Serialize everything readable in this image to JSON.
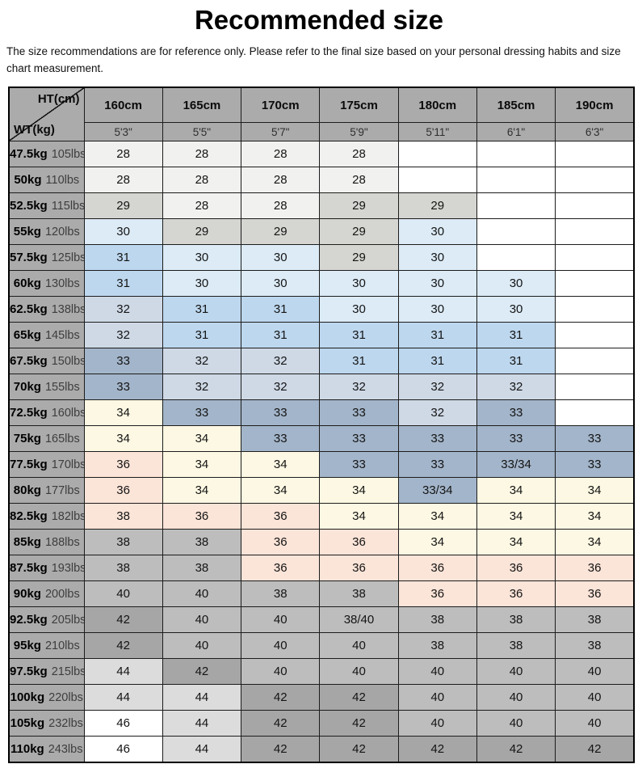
{
  "title": "Recommended size",
  "disclaimer": "The size recommendations are for reference only. Please refer to the final size based on your personal dressing habits and size chart measurement.",
  "table": {
    "corner_top": "HT(cm)",
    "corner_bottom": "WT(kg)",
    "heights_cm": [
      "160cm",
      "165cm",
      "170cm",
      "175cm",
      "180cm",
      "185cm",
      "190cm"
    ],
    "heights_ft": [
      "5'3\"",
      "5'5\"",
      "5'7\"",
      "5'9\"",
      "5'11\"",
      "6'1\"",
      "6'3\""
    ],
    "colors": {
      "white": "#ffffff",
      "near_white": "#f1f1ef",
      "gray_light": "#d5d5d1",
      "blue_pale": "#dcebf6",
      "blue_mid": "#bdd7ee",
      "bluegray_pale": "#cfd9e6",
      "bluegray_deep": "#a3b5ca",
      "cream": "#fdf8e3",
      "pink": "#fbe4d8",
      "gray_mid": "#bdbdbd",
      "gray_dark": "#a6a6a6",
      "gray_pale": "#dcdcdc",
      "header_gray": "#ababab"
    },
    "rows": [
      {
        "kg": "47.5kg",
        "lbs": "105lbs",
        "cells": [
          {
            "v": "28",
            "c": "near_white"
          },
          {
            "v": "28",
            "c": "near_white"
          },
          {
            "v": "28",
            "c": "near_white"
          },
          {
            "v": "28",
            "c": "near_white"
          },
          {
            "v": "",
            "c": "white"
          },
          {
            "v": "",
            "c": "white"
          },
          {
            "v": "",
            "c": "white"
          }
        ]
      },
      {
        "kg": "50kg",
        "lbs": "110lbs",
        "cells": [
          {
            "v": "28",
            "c": "near_white"
          },
          {
            "v": "28",
            "c": "near_white"
          },
          {
            "v": "28",
            "c": "near_white"
          },
          {
            "v": "28",
            "c": "near_white"
          },
          {
            "v": "",
            "c": "white"
          },
          {
            "v": "",
            "c": "white"
          },
          {
            "v": "",
            "c": "white"
          }
        ]
      },
      {
        "kg": "52.5kg",
        "lbs": "115lbs",
        "cells": [
          {
            "v": "29",
            "c": "gray_light"
          },
          {
            "v": "28",
            "c": "near_white"
          },
          {
            "v": "28",
            "c": "near_white"
          },
          {
            "v": "29",
            "c": "gray_light"
          },
          {
            "v": "29",
            "c": "gray_light"
          },
          {
            "v": "",
            "c": "white"
          },
          {
            "v": "",
            "c": "white"
          }
        ]
      },
      {
        "kg": "55kg",
        "lbs": "120lbs",
        "cells": [
          {
            "v": "30",
            "c": "blue_pale"
          },
          {
            "v": "29",
            "c": "gray_light"
          },
          {
            "v": "29",
            "c": "gray_light"
          },
          {
            "v": "29",
            "c": "gray_light"
          },
          {
            "v": "30",
            "c": "blue_pale"
          },
          {
            "v": "",
            "c": "white"
          },
          {
            "v": "",
            "c": "white"
          }
        ]
      },
      {
        "kg": "57.5kg",
        "lbs": "125lbs",
        "cells": [
          {
            "v": "31",
            "c": "blue_mid"
          },
          {
            "v": "30",
            "c": "blue_pale"
          },
          {
            "v": "30",
            "c": "blue_pale"
          },
          {
            "v": "29",
            "c": "gray_light"
          },
          {
            "v": "30",
            "c": "blue_pale"
          },
          {
            "v": "",
            "c": "white"
          },
          {
            "v": "",
            "c": "white"
          }
        ]
      },
      {
        "kg": "60kg",
        "lbs": "130lbs",
        "cells": [
          {
            "v": "31",
            "c": "blue_mid"
          },
          {
            "v": "30",
            "c": "blue_pale"
          },
          {
            "v": "30",
            "c": "blue_pale"
          },
          {
            "v": "30",
            "c": "blue_pale"
          },
          {
            "v": "30",
            "c": "blue_pale"
          },
          {
            "v": "30",
            "c": "blue_pale"
          },
          {
            "v": "",
            "c": "white"
          }
        ]
      },
      {
        "kg": "62.5kg",
        "lbs": "138lbs",
        "cells": [
          {
            "v": "32",
            "c": "bluegray_pale"
          },
          {
            "v": "31",
            "c": "blue_mid"
          },
          {
            "v": "31",
            "c": "blue_mid"
          },
          {
            "v": "30",
            "c": "blue_pale"
          },
          {
            "v": "30",
            "c": "blue_pale"
          },
          {
            "v": "30",
            "c": "blue_pale"
          },
          {
            "v": "",
            "c": "white"
          }
        ]
      },
      {
        "kg": "65kg",
        "lbs": "145lbs",
        "cells": [
          {
            "v": "32",
            "c": "bluegray_pale"
          },
          {
            "v": "31",
            "c": "blue_mid"
          },
          {
            "v": "31",
            "c": "blue_mid"
          },
          {
            "v": "31",
            "c": "blue_mid"
          },
          {
            "v": "31",
            "c": "blue_mid"
          },
          {
            "v": "31",
            "c": "blue_mid"
          },
          {
            "v": "",
            "c": "white"
          }
        ]
      },
      {
        "kg": "67.5kg",
        "lbs": "150lbs",
        "cells": [
          {
            "v": "33",
            "c": "bluegray_deep"
          },
          {
            "v": "32",
            "c": "bluegray_pale"
          },
          {
            "v": "32",
            "c": "bluegray_pale"
          },
          {
            "v": "31",
            "c": "blue_mid"
          },
          {
            "v": "31",
            "c": "blue_mid"
          },
          {
            "v": "31",
            "c": "blue_mid"
          },
          {
            "v": "",
            "c": "white"
          }
        ]
      },
      {
        "kg": "70kg",
        "lbs": "155lbs",
        "cells": [
          {
            "v": "33",
            "c": "bluegray_deep"
          },
          {
            "v": "32",
            "c": "bluegray_pale"
          },
          {
            "v": "32",
            "c": "bluegray_pale"
          },
          {
            "v": "32",
            "c": "bluegray_pale"
          },
          {
            "v": "32",
            "c": "bluegray_pale"
          },
          {
            "v": "32",
            "c": "bluegray_pale"
          },
          {
            "v": "",
            "c": "white"
          }
        ]
      },
      {
        "kg": "72.5kg",
        "lbs": "160lbs",
        "cells": [
          {
            "v": "34",
            "c": "cream"
          },
          {
            "v": "33",
            "c": "bluegray_deep"
          },
          {
            "v": "33",
            "c": "bluegray_deep"
          },
          {
            "v": "33",
            "c": "bluegray_deep"
          },
          {
            "v": "32",
            "c": "bluegray_pale"
          },
          {
            "v": "33",
            "c": "bluegray_deep"
          },
          {
            "v": "",
            "c": "white"
          }
        ]
      },
      {
        "kg": "75kg",
        "lbs": "165lbs",
        "cells": [
          {
            "v": "34",
            "c": "cream"
          },
          {
            "v": "34",
            "c": "cream"
          },
          {
            "v": "33",
            "c": "bluegray_deep"
          },
          {
            "v": "33",
            "c": "bluegray_deep"
          },
          {
            "v": "33",
            "c": "bluegray_deep"
          },
          {
            "v": "33",
            "c": "bluegray_deep"
          },
          {
            "v": "33",
            "c": "bluegray_deep"
          }
        ]
      },
      {
        "kg": "77.5kg",
        "lbs": "170lbs",
        "cells": [
          {
            "v": "36",
            "c": "pink"
          },
          {
            "v": "34",
            "c": "cream"
          },
          {
            "v": "34",
            "c": "cream"
          },
          {
            "v": "33",
            "c": "bluegray_deep"
          },
          {
            "v": "33",
            "c": "bluegray_deep"
          },
          {
            "v": "33/34",
            "c": "bluegray_deep"
          },
          {
            "v": "33",
            "c": "bluegray_deep"
          }
        ]
      },
      {
        "kg": "80kg",
        "lbs": "177lbs",
        "cells": [
          {
            "v": "36",
            "c": "pink"
          },
          {
            "v": "34",
            "c": "cream"
          },
          {
            "v": "34",
            "c": "cream"
          },
          {
            "v": "34",
            "c": "cream"
          },
          {
            "v": "33/34",
            "c": "bluegray_deep"
          },
          {
            "v": "34",
            "c": "cream"
          },
          {
            "v": "34",
            "c": "cream"
          }
        ]
      },
      {
        "kg": "82.5kg",
        "lbs": "182lbs",
        "cells": [
          {
            "v": "38",
            "c": "pink"
          },
          {
            "v": "36",
            "c": "pink"
          },
          {
            "v": "36",
            "c": "pink"
          },
          {
            "v": "34",
            "c": "cream"
          },
          {
            "v": "34",
            "c": "cream"
          },
          {
            "v": "34",
            "c": "cream"
          },
          {
            "v": "34",
            "c": "cream"
          }
        ]
      },
      {
        "kg": "85kg",
        "lbs": "188lbs",
        "cells": [
          {
            "v": "38",
            "c": "gray_mid"
          },
          {
            "v": "38",
            "c": "gray_mid"
          },
          {
            "v": "36",
            "c": "pink"
          },
          {
            "v": "36",
            "c": "pink"
          },
          {
            "v": "34",
            "c": "cream"
          },
          {
            "v": "34",
            "c": "cream"
          },
          {
            "v": "34",
            "c": "cream"
          }
        ]
      },
      {
        "kg": "87.5kg",
        "lbs": "193lbs",
        "cells": [
          {
            "v": "38",
            "c": "gray_mid"
          },
          {
            "v": "38",
            "c": "gray_mid"
          },
          {
            "v": "36",
            "c": "pink"
          },
          {
            "v": "36",
            "c": "pink"
          },
          {
            "v": "36",
            "c": "pink"
          },
          {
            "v": "36",
            "c": "pink"
          },
          {
            "v": "36",
            "c": "pink"
          }
        ]
      },
      {
        "kg": "90kg",
        "lbs": "200lbs",
        "cells": [
          {
            "v": "40",
            "c": "gray_mid"
          },
          {
            "v": "40",
            "c": "gray_mid"
          },
          {
            "v": "38",
            "c": "gray_mid"
          },
          {
            "v": "38",
            "c": "gray_mid"
          },
          {
            "v": "36",
            "c": "pink"
          },
          {
            "v": "36",
            "c": "pink"
          },
          {
            "v": "36",
            "c": "pink"
          }
        ]
      },
      {
        "kg": "92.5kg",
        "lbs": "205lbs",
        "cells": [
          {
            "v": "42",
            "c": "gray_dark"
          },
          {
            "v": "40",
            "c": "gray_mid"
          },
          {
            "v": "40",
            "c": "gray_mid"
          },
          {
            "v": "38/40",
            "c": "gray_mid"
          },
          {
            "v": "38",
            "c": "gray_mid"
          },
          {
            "v": "38",
            "c": "gray_mid"
          },
          {
            "v": "38",
            "c": "gray_mid"
          }
        ]
      },
      {
        "kg": "95kg",
        "lbs": "210lbs",
        "cells": [
          {
            "v": "42",
            "c": "gray_dark"
          },
          {
            "v": "40",
            "c": "gray_mid"
          },
          {
            "v": "40",
            "c": "gray_mid"
          },
          {
            "v": "40",
            "c": "gray_mid"
          },
          {
            "v": "38",
            "c": "gray_mid"
          },
          {
            "v": "38",
            "c": "gray_mid"
          },
          {
            "v": "38",
            "c": "gray_mid"
          }
        ]
      },
      {
        "kg": "97.5kg",
        "lbs": "215lbs",
        "cells": [
          {
            "v": "44",
            "c": "gray_pale"
          },
          {
            "v": "42",
            "c": "gray_dark"
          },
          {
            "v": "40",
            "c": "gray_mid"
          },
          {
            "v": "40",
            "c": "gray_mid"
          },
          {
            "v": "40",
            "c": "gray_mid"
          },
          {
            "v": "40",
            "c": "gray_mid"
          },
          {
            "v": "40",
            "c": "gray_mid"
          }
        ]
      },
      {
        "kg": "100kg",
        "lbs": "220lbs",
        "cells": [
          {
            "v": "44",
            "c": "gray_pale"
          },
          {
            "v": "44",
            "c": "gray_pale"
          },
          {
            "v": "42",
            "c": "gray_dark"
          },
          {
            "v": "42",
            "c": "gray_dark"
          },
          {
            "v": "40",
            "c": "gray_mid"
          },
          {
            "v": "40",
            "c": "gray_mid"
          },
          {
            "v": "40",
            "c": "gray_mid"
          }
        ]
      },
      {
        "kg": "105kg",
        "lbs": "232lbs",
        "cells": [
          {
            "v": "46",
            "c": "white"
          },
          {
            "v": "44",
            "c": "gray_pale"
          },
          {
            "v": "42",
            "c": "gray_dark"
          },
          {
            "v": "42",
            "c": "gray_dark"
          },
          {
            "v": "40",
            "c": "gray_mid"
          },
          {
            "v": "40",
            "c": "gray_mid"
          },
          {
            "v": "40",
            "c": "gray_mid"
          }
        ]
      },
      {
        "kg": "110kg",
        "lbs": "243lbs",
        "cells": [
          {
            "v": "46",
            "c": "white"
          },
          {
            "v": "44",
            "c": "gray_pale"
          },
          {
            "v": "42",
            "c": "gray_dark"
          },
          {
            "v": "42",
            "c": "gray_dark"
          },
          {
            "v": "42",
            "c": "gray_dark"
          },
          {
            "v": "42",
            "c": "gray_dark"
          },
          {
            "v": "42",
            "c": "gray_dark"
          }
        ]
      }
    ]
  }
}
